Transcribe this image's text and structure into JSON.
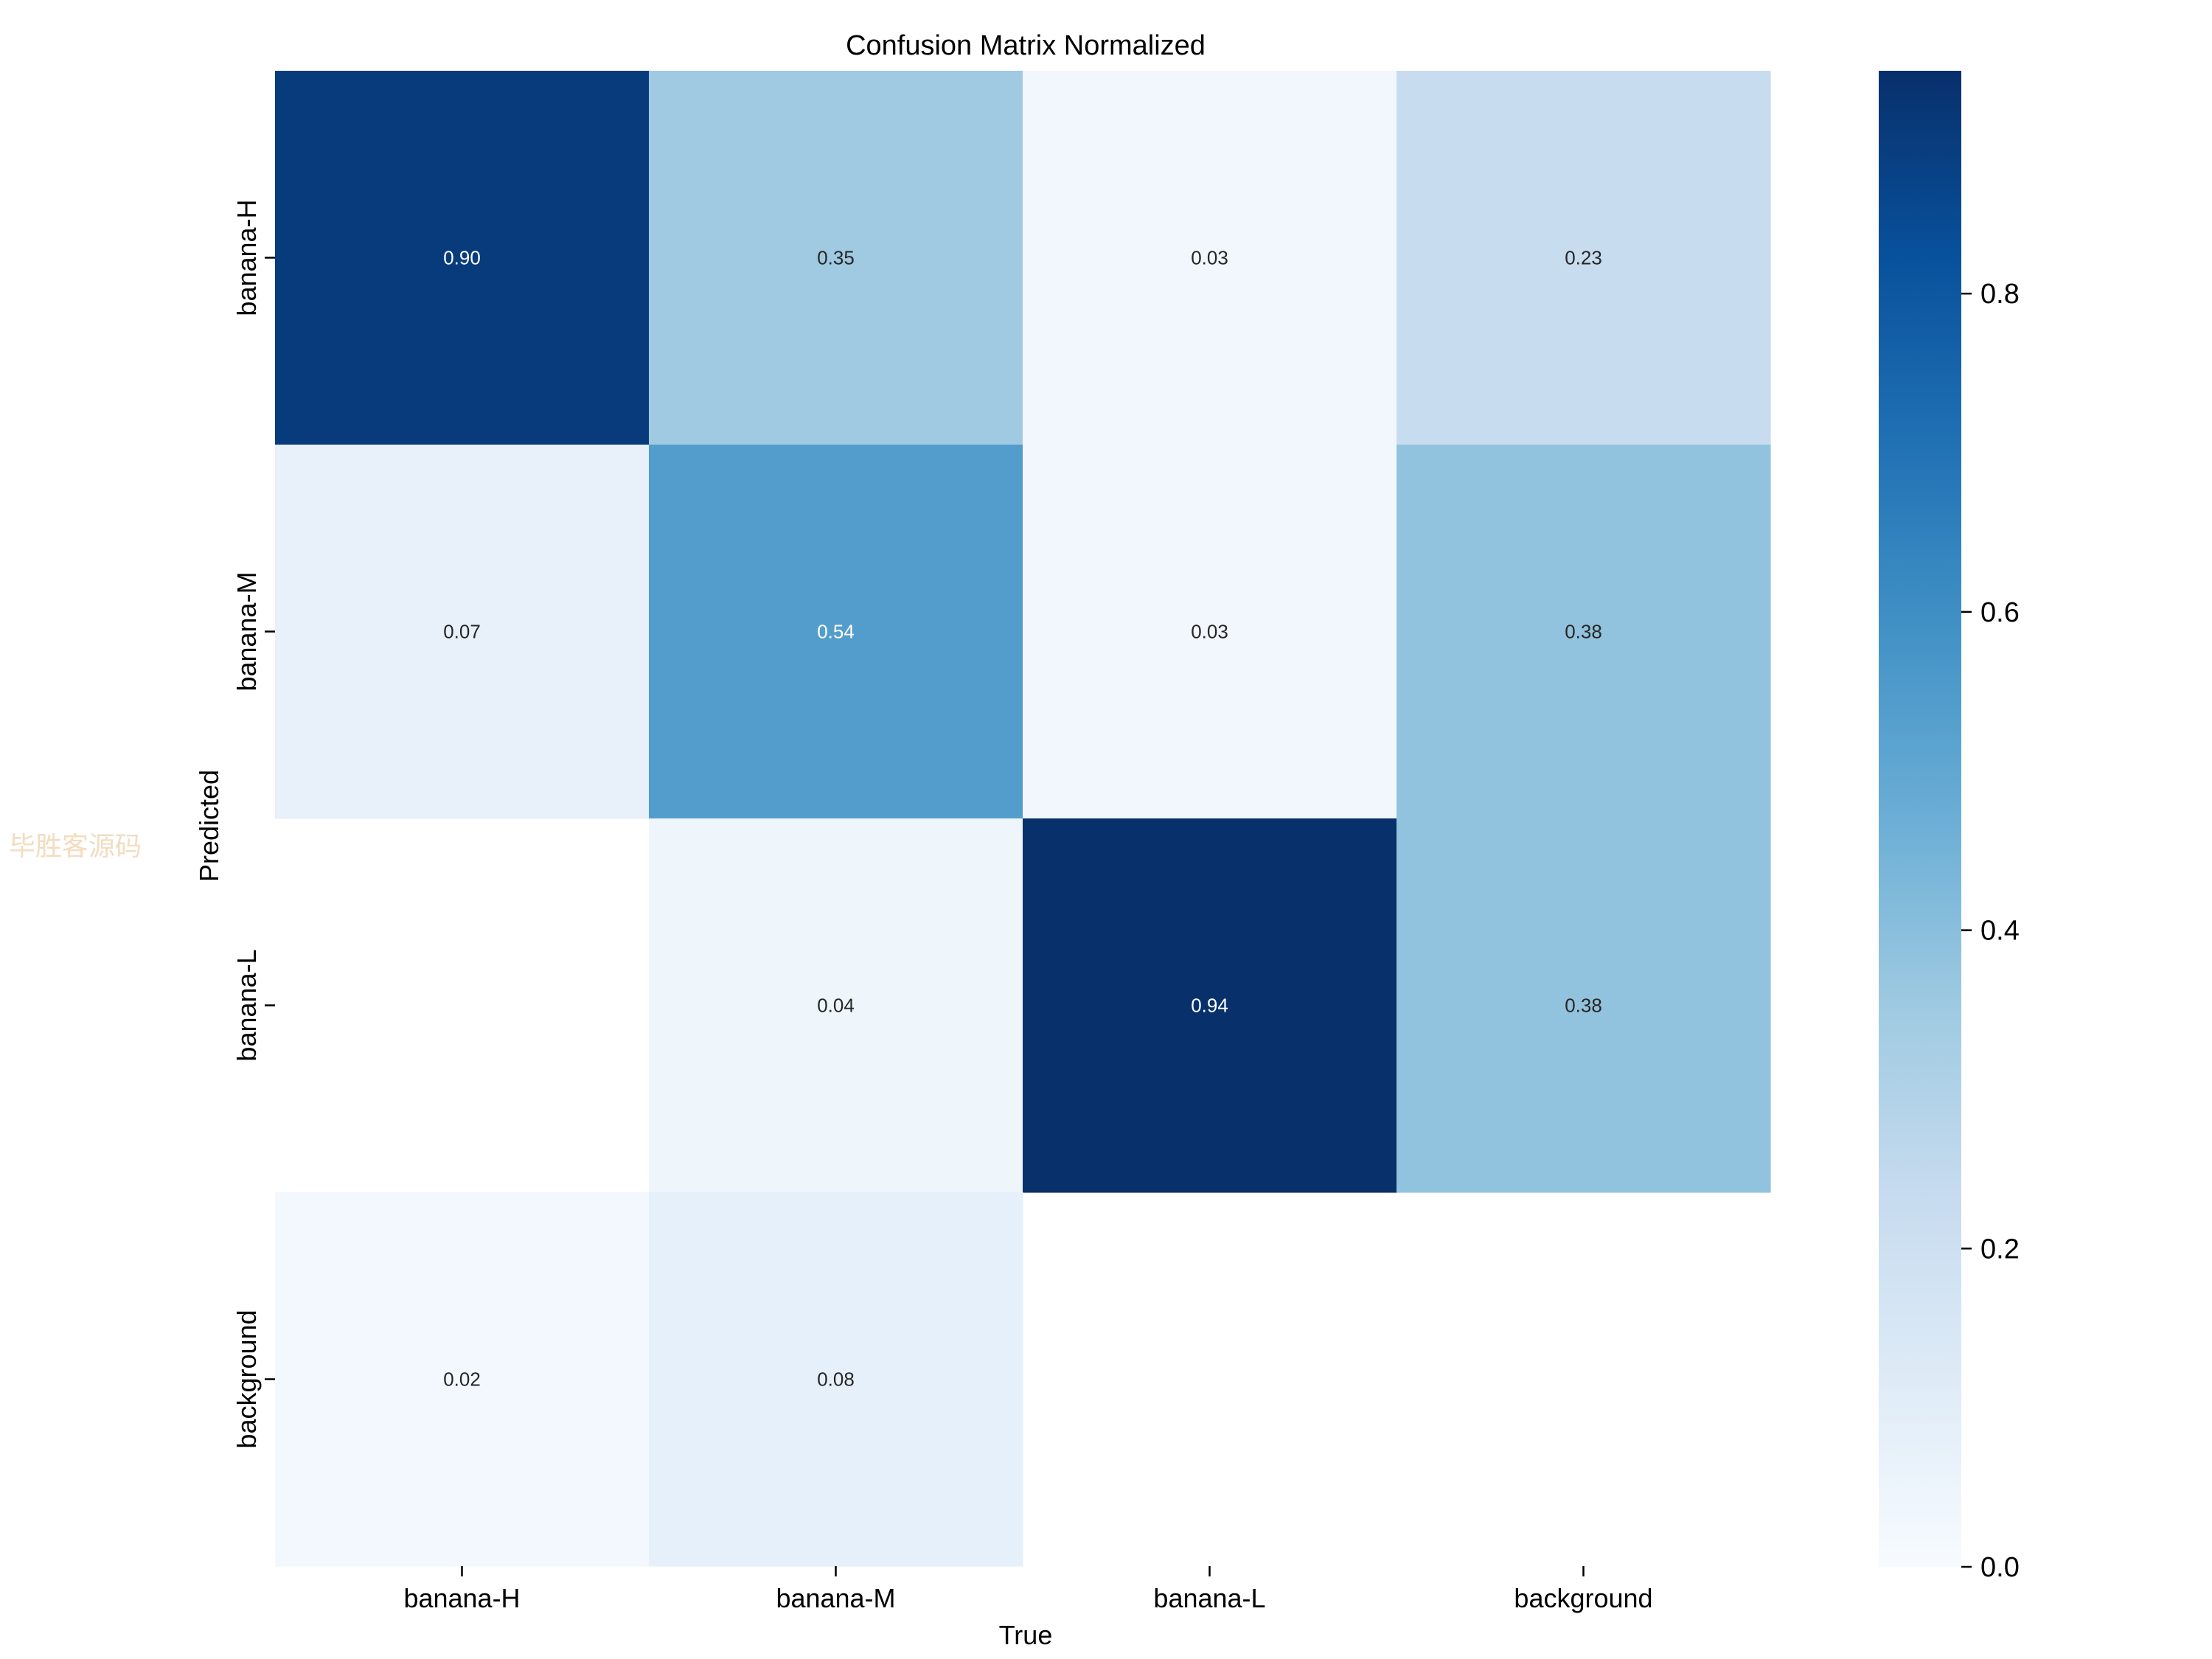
{
  "chart_data": {
    "type": "heatmap",
    "title": "Confusion Matrix Normalized",
    "xlabel": "True",
    "ylabel": "Predicted",
    "x_categories": [
      "banana-H",
      "banana-M",
      "banana-L",
      "background"
    ],
    "y_categories": [
      "banana-H",
      "banana-M",
      "banana-L",
      "background"
    ],
    "values": [
      [
        0.9,
        0.35,
        0.03,
        0.23
      ],
      [
        0.07,
        0.54,
        0.03,
        0.38
      ],
      [
        null,
        0.04,
        0.94,
        0.38
      ],
      [
        0.02,
        0.08,
        null,
        null
      ]
    ],
    "value_labels": [
      [
        "0.90",
        "0.35",
        "0.03",
        "0.23"
      ],
      [
        "0.07",
        "0.54",
        "0.03",
        "0.38"
      ],
      [
        "",
        "0.04",
        "0.94",
        "0.38"
      ],
      [
        "0.02",
        "0.08",
        "",
        ""
      ]
    ],
    "colormap": "Blues",
    "colorbar": {
      "min": 0.0,
      "max": 0.94,
      "ticks": [
        0.0,
        0.2,
        0.4,
        0.6,
        0.8
      ],
      "tick_labels": [
        "0.0",
        "0.2",
        "0.4",
        "0.6",
        "0.8"
      ]
    }
  },
  "watermark": "毕胜客源码",
  "colors": {
    "text": "#000000",
    "watermark": "#f3dcc0",
    "cmap_stops": [
      "#f7fbff",
      "#deebf7",
      "#c6dbef",
      "#9ecae1",
      "#6baed6",
      "#4292c6",
      "#2171b5",
      "#08519c",
      "#08306b"
    ]
  }
}
